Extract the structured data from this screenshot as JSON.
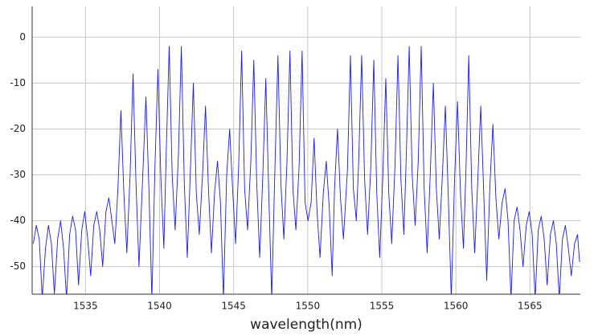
{
  "chart_data": {
    "type": "line",
    "x_label": "wavelength(nm)",
    "color": "#1a1aff",
    "xlim": [
      1531.4,
      1568.4
    ],
    "ylim": [
      -56,
      6.7
    ],
    "xticks": [
      1535,
      1540,
      1545,
      1550,
      1555,
      1560,
      1565
    ],
    "yticks": [
      -50,
      -40,
      -30,
      -20,
      -10,
      0
    ],
    "grid": true,
    "x": [
      1531.48,
      1531.68,
      1531.88,
      1532.08,
      1532.3,
      1532.5,
      1532.7,
      1532.9,
      1533.12,
      1533.32,
      1533.52,
      1533.72,
      1533.93,
      1534.13,
      1534.33,
      1534.53,
      1534.75,
      1534.95,
      1535.15,
      1535.35,
      1535.56,
      1535.76,
      1535.96,
      1536.16,
      1536.38,
      1536.58,
      1536.78,
      1536.98,
      1537.19,
      1537.39,
      1537.59,
      1537.79,
      1538.01,
      1538.21,
      1538.41,
      1538.61,
      1538.88,
      1539.08,
      1539.28,
      1539.48,
      1539.69,
      1539.89,
      1540.09,
      1540.29,
      1540.45,
      1540.65,
      1540.85,
      1541.05,
      1541.27,
      1541.47,
      1541.67,
      1541.87,
      1542.08,
      1542.28,
      1542.48,
      1542.68,
      1542.9,
      1543.1,
      1543.3,
      1543.5,
      1543.71,
      1543.91,
      1544.11,
      1544.31,
      1544.53,
      1544.73,
      1544.93,
      1545.13,
      1545.34,
      1545.54,
      1545.74,
      1545.94,
      1546.16,
      1546.36,
      1546.56,
      1546.76,
      1546.97,
      1547.17,
      1547.37,
      1547.57,
      1547.79,
      1547.99,
      1548.19,
      1548.39,
      1548.6,
      1548.8,
      1549.0,
      1549.2,
      1549.42,
      1549.62,
      1549.82,
      1550.02,
      1550.23,
      1550.43,
      1550.63,
      1550.83,
      1551.05,
      1551.25,
      1551.45,
      1551.65,
      1551.81,
      1552.01,
      1552.21,
      1552.41,
      1552.68,
      1552.88,
      1553.08,
      1553.28,
      1553.44,
      1553.64,
      1553.84,
      1554.04,
      1554.26,
      1554.46,
      1554.66,
      1554.86,
      1555.07,
      1555.27,
      1555.47,
      1555.67,
      1555.89,
      1556.09,
      1556.29,
      1556.49,
      1556.65,
      1556.85,
      1557.05,
      1557.25,
      1557.46,
      1557.66,
      1557.86,
      1558.06,
      1558.28,
      1558.48,
      1558.68,
      1558.88,
      1559.09,
      1559.29,
      1559.49,
      1559.69,
      1559.91,
      1560.11,
      1560.31,
      1560.51,
      1560.67,
      1560.87,
      1561.07,
      1561.27,
      1561.48,
      1561.68,
      1561.88,
      1562.08,
      1562.3,
      1562.5,
      1562.7,
      1562.9,
      1563.12,
      1563.32,
      1563.52,
      1563.72,
      1563.93,
      1564.13,
      1564.33,
      1564.53,
      1564.75,
      1564.95,
      1565.15,
      1565.35,
      1565.56,
      1565.76,
      1565.96,
      1566.16,
      1566.38,
      1566.58,
      1566.78,
      1566.98,
      1567.19,
      1567.39,
      1567.59,
      1567.79,
      1568.01,
      1568.21,
      1568.35
    ],
    "values": [
      -45,
      -41,
      -44,
      -57,
      -46,
      -41,
      -45,
      -56,
      -44,
      -40,
      -46,
      -57,
      -43,
      -39,
      -42,
      -54,
      -42,
      -38,
      -44,
      -52,
      -41,
      -38,
      -42,
      -50,
      -38,
      -35,
      -40,
      -45,
      -33,
      -16,
      -34,
      -47,
      -30,
      -8,
      -32,
      -50,
      -29,
      -13,
      -33,
      -57,
      -28,
      -7,
      -31,
      -46,
      -25,
      -2,
      -30,
      -42,
      -26,
      -2,
      -32,
      -48,
      -29,
      -10,
      -34,
      -43,
      -30,
      -15,
      -33,
      -47,
      -34,
      -27,
      -36,
      -57,
      -30,
      -20,
      -33,
      -45,
      -28,
      -3,
      -33,
      -42,
      -27,
      -5,
      -32,
      -48,
      -30,
      -9,
      -34,
      -57,
      -28,
      -4,
      -32,
      -44,
      -27,
      -3,
      -33,
      -42,
      -28,
      -3,
      -36,
      -40,
      -36,
      -22,
      -38,
      -48,
      -34,
      -27,
      -37,
      -52,
      -33,
      -20,
      -35,
      -44,
      -29,
      -4,
      -33,
      -40,
      -27,
      -4,
      -31,
      -43,
      -28,
      -5,
      -34,
      -48,
      -30,
      -9,
      -34,
      -45,
      -28,
      -4,
      -31,
      -43,
      -26,
      -2,
      -30,
      -41,
      -27,
      -2,
      -33,
      -47,
      -29,
      -10,
      -33,
      -44,
      -30,
      -15,
      -35,
      -57,
      -31,
      -14,
      -34,
      -46,
      -30,
      -4,
      -33,
      -47,
      -31,
      -15,
      -34,
      -53,
      -32,
      -19,
      -35,
      -44,
      -36,
      -33,
      -40,
      -57,
      -40,
      -37,
      -42,
      -50,
      -41,
      -38,
      -43,
      -57,
      -42,
      -39,
      -44,
      -54,
      -43,
      -40,
      -45,
      -57,
      -44,
      -41,
      -46,
      -52,
      -45,
      -43,
      -49
    ]
  }
}
